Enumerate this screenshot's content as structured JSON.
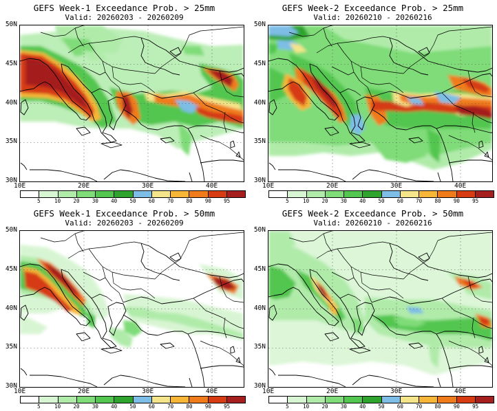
{
  "colorbar": {
    "colors": [
      "#ffffff",
      "#d8f5d3",
      "#b0ebaa",
      "#7fdc78",
      "#52c64f",
      "#2ea32e",
      "#7dbde6",
      "#f5e58a",
      "#f7b637",
      "#f07b1b",
      "#d63b12",
      "#a51f1f"
    ],
    "labels": [
      "5",
      "10",
      "20",
      "30",
      "40",
      "50",
      "60",
      "70",
      "80",
      "90",
      "95"
    ]
  },
  "axes": {
    "lat_labels": [
      "50N",
      "45N",
      "40N",
      "35N",
      "30N"
    ],
    "lon_labels": [
      "10E",
      "20E",
      "30E",
      "40E"
    ]
  },
  "panels": [
    {
      "title": "GEFS Week-1 Exceedance Prob. > 25mm",
      "subtitle": "Valid: 20260203 - 20260209"
    },
    {
      "title": "GEFS Week-2 Exceedance Prob. > 25mm",
      "subtitle": "Valid: 20260210 - 20260216"
    },
    {
      "title": "GEFS Week-1 Exceedance Prob. > 50mm",
      "subtitle": "Valid: 20260203 - 20260209"
    },
    {
      "title": "GEFS Week-2 Exceedance Prob. > 50mm",
      "subtitle": "Valid: 20260210 - 20260216"
    }
  ]
}
